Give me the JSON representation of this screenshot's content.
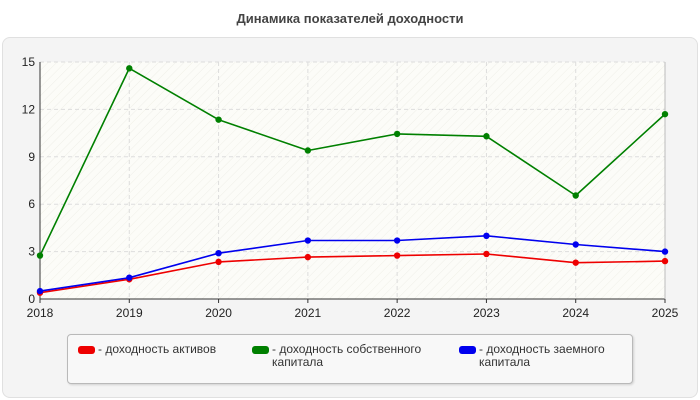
{
  "title": "Динамика показателей доходности",
  "colors": {
    "red": "#ee0000",
    "green": "#008000",
    "blue": "#0000ee"
  },
  "chart_data": {
    "type": "line",
    "title": "Динамика показателей доходности",
    "xlabel": "",
    "ylabel": "",
    "categories": [
      "2018",
      "2019",
      "2020",
      "2021",
      "2022",
      "2023",
      "2024",
      "2025"
    ],
    "ylim": [
      0,
      15
    ],
    "yticks": [
      0,
      3,
      6,
      9,
      12,
      15
    ],
    "grid": true,
    "legend_position": "bottom",
    "series": [
      {
        "name": "- доходность активов",
        "color": "#ee0000",
        "values": [
          0.4,
          1.25,
          2.35,
          2.65,
          2.75,
          2.85,
          2.3,
          2.4
        ]
      },
      {
        "name": "- доходность собственного капитала",
        "color": "#008000",
        "values": [
          2.75,
          14.6,
          11.35,
          9.4,
          10.45,
          10.3,
          6.55,
          11.7
        ]
      },
      {
        "name": "- доходность заемного капитала",
        "color": "#0000ee",
        "values": [
          0.5,
          1.35,
          2.9,
          3.7,
          3.7,
          4.0,
          3.45,
          3.0
        ]
      }
    ]
  }
}
